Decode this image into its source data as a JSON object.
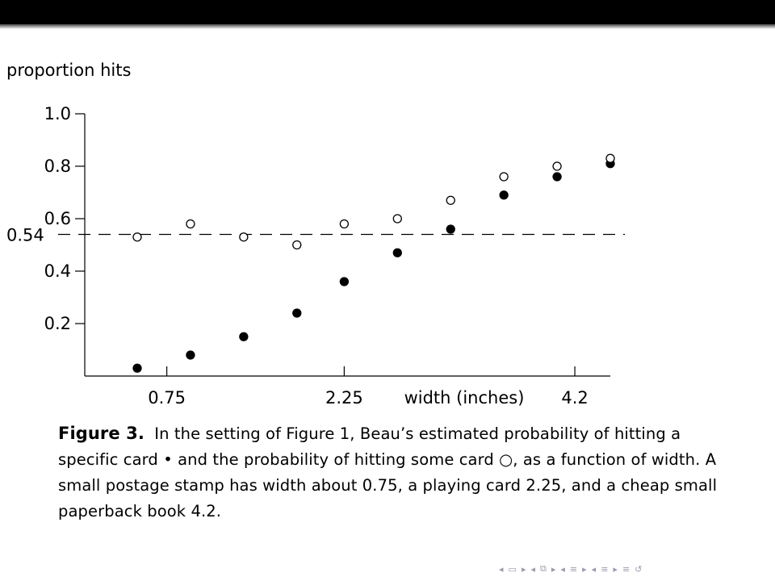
{
  "chart_data": {
    "type": "scatter",
    "ylabel": "proportion hits",
    "xlabel": "width (inches)",
    "x_ticks": [
      0.75,
      2.25,
      4.2
    ],
    "x_tick_labels": [
      "0.75",
      "2.25",
      "4.2"
    ],
    "y_ticks": [
      0.2,
      0.4,
      0.6,
      0.8,
      1.0
    ],
    "y_tick_labels": [
      "0.2",
      "0.4",
      "0.6",
      "0.8",
      "1.0"
    ],
    "xlim": [
      0.0,
      4.6
    ],
    "ylim": [
      0.0,
      1.0
    ],
    "reference_line": {
      "y": 0.54,
      "label": "0.54",
      "style": "dashed"
    },
    "series": [
      {
        "marker": "filled-circle",
        "x": [
          0.5,
          0.95,
          1.4,
          1.85,
          2.25,
          2.7,
          3.15,
          3.6,
          4.05,
          4.5
        ],
        "y": [
          0.03,
          0.08,
          0.15,
          0.24,
          0.36,
          0.47,
          0.56,
          0.69,
          0.76,
          0.81
        ]
      },
      {
        "marker": "open-circle",
        "x": [
          0.5,
          0.95,
          1.4,
          1.85,
          2.25,
          2.7,
          3.15,
          3.6,
          4.05,
          4.5
        ],
        "y": [
          0.53,
          0.58,
          0.53,
          0.5,
          0.58,
          0.6,
          0.67,
          0.76,
          0.8,
          0.83
        ]
      }
    ]
  },
  "caption": {
    "label": "Figure 3.",
    "text": "In the setting of Figure 1, Beau’s estimated probability of hitting a specific card • and the probability of hitting some card ○, as a function of width. A small postage stamp has width about 0.75, a playing card 2.25, and a cheap small paperback book 4.2."
  },
  "nav_icons": [
    "left-triangle-icon",
    "frame-icon",
    "right-triangle-icon",
    "left-triangle-icon",
    "stack-icon",
    "right-triangle-icon",
    "left-triangle-icon",
    "section-icon",
    "right-triangle-icon",
    "left-triangle-icon",
    "subsection-icon",
    "right-triangle-icon",
    "align-icon",
    "search-loop-icon"
  ]
}
